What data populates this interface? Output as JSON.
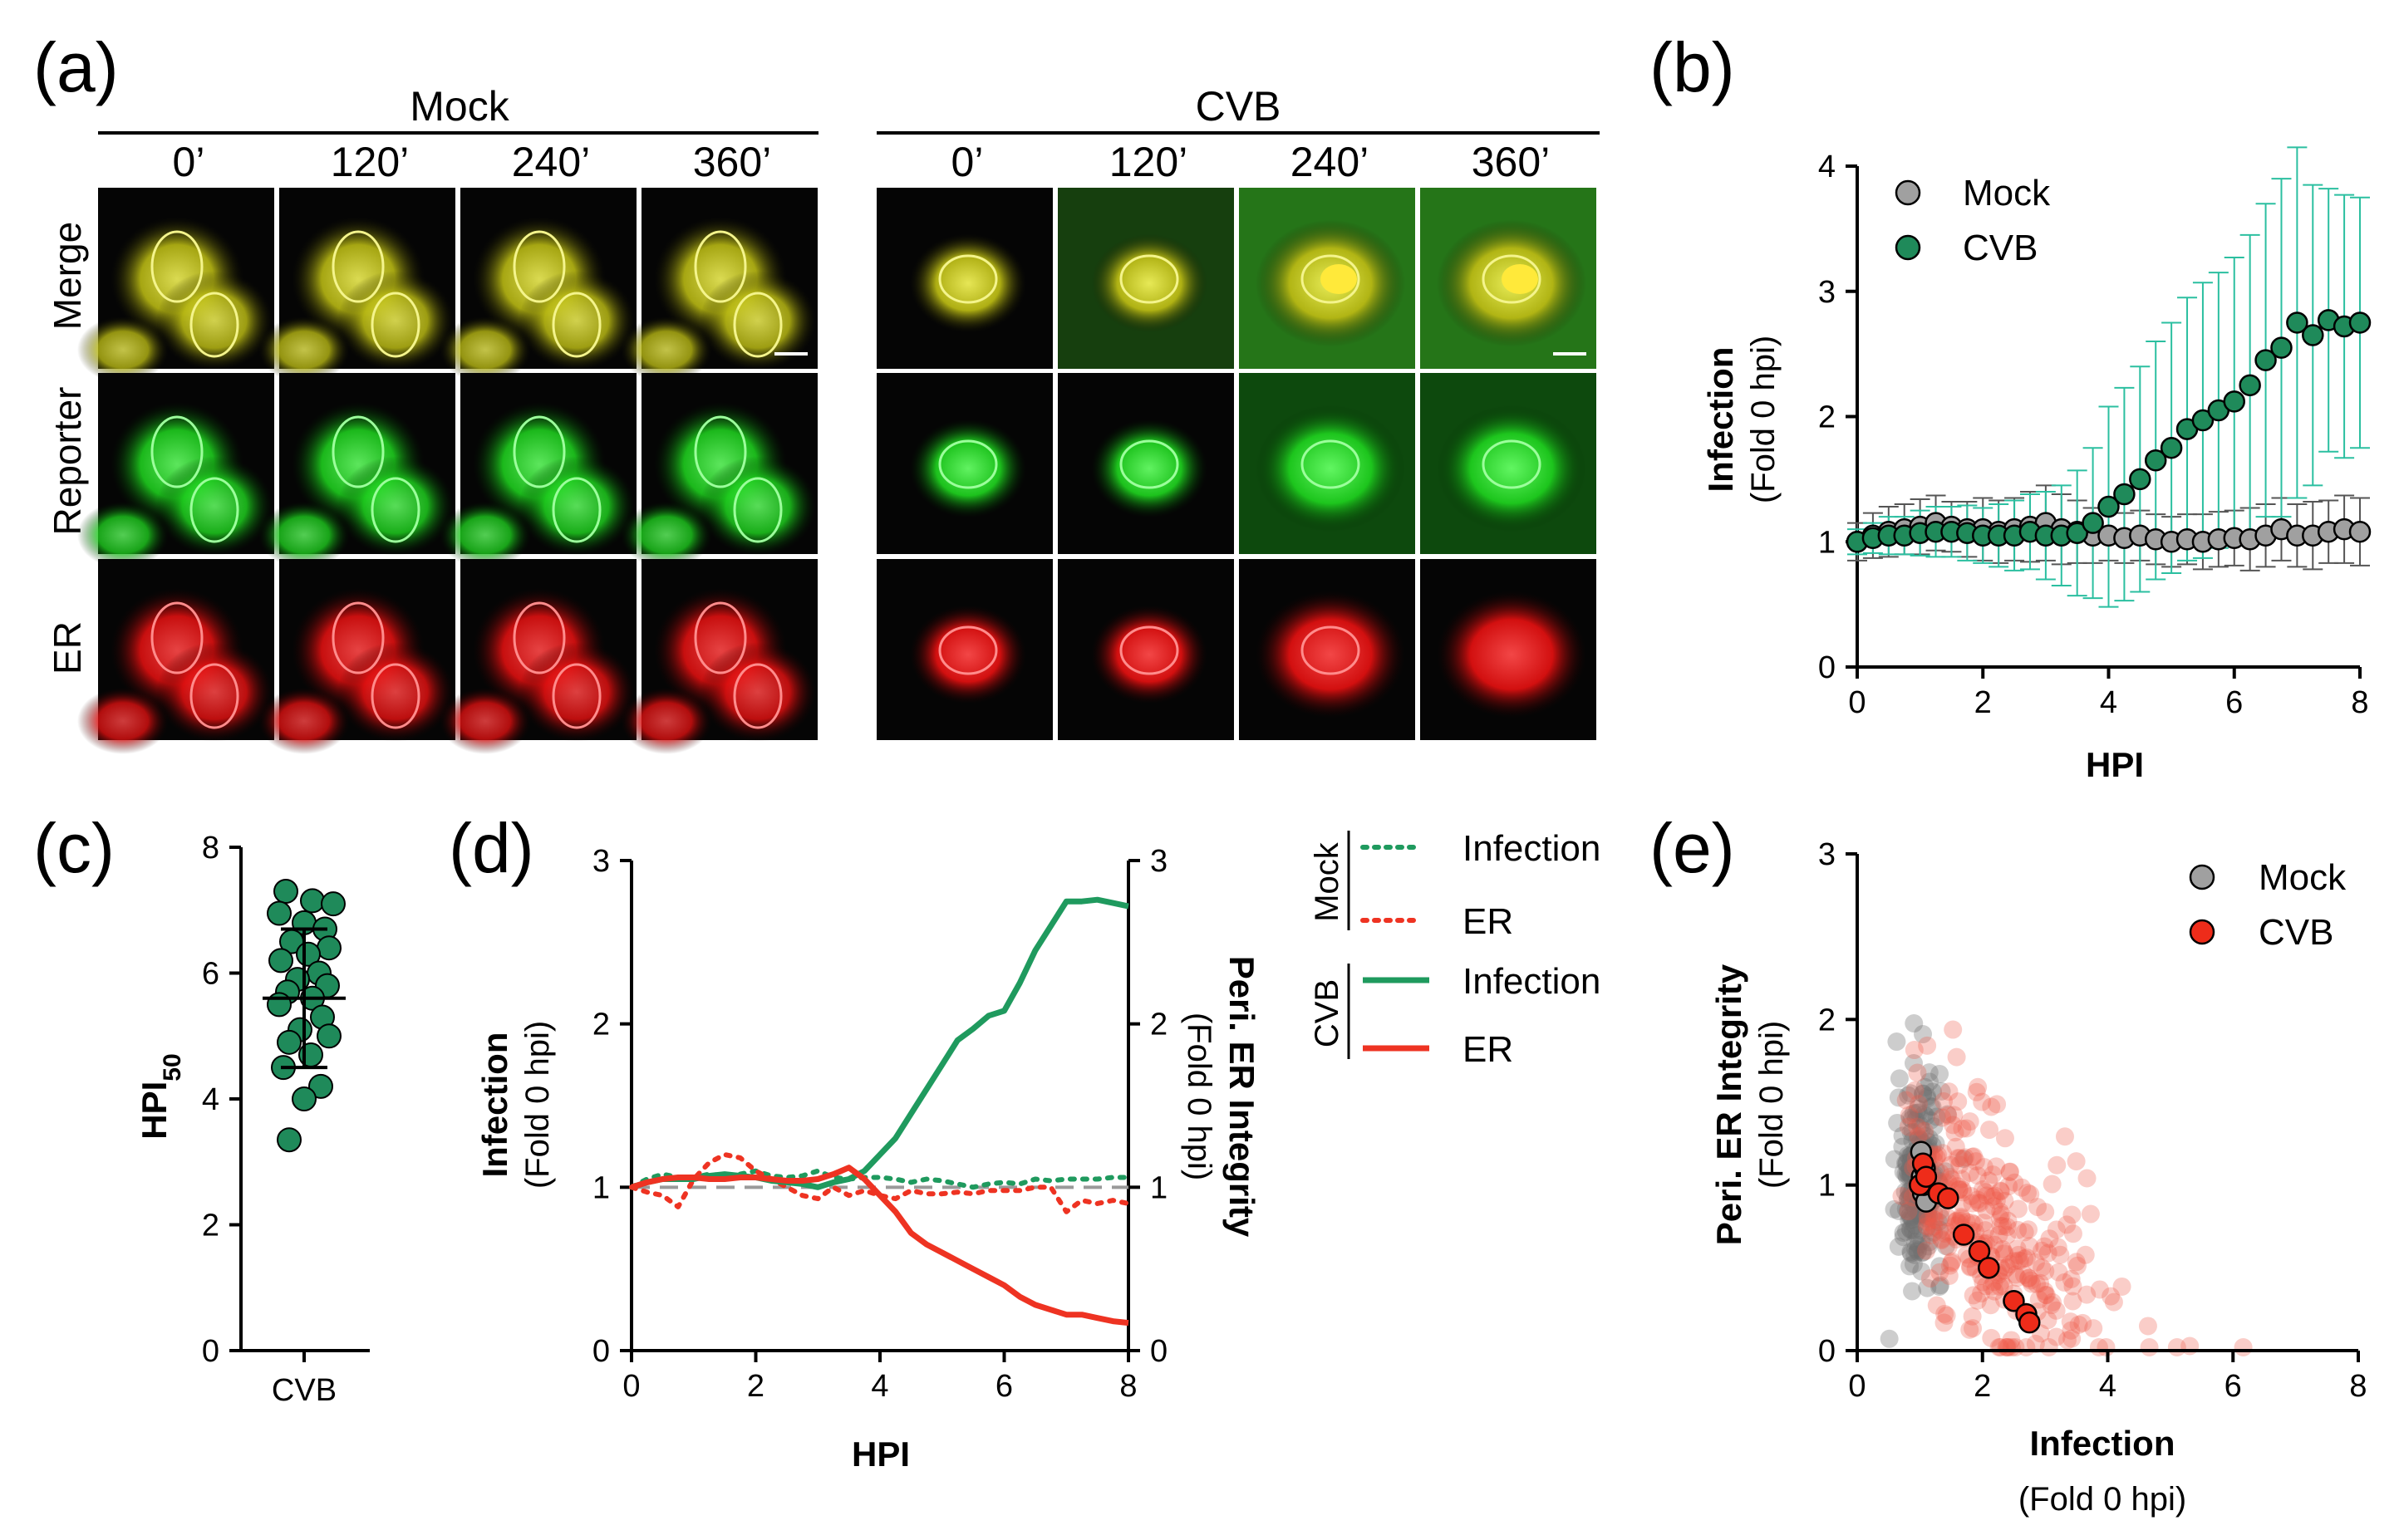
{
  "figure": {
    "panel_a": {
      "letter": "(a)",
      "groups": [
        {
          "name": "Mock",
          "times": [
            "0’",
            "120’",
            "240’",
            "360’"
          ]
        },
        {
          "name": "CVB",
          "times": [
            "0’",
            "120’",
            "240’",
            "360’"
          ]
        }
      ],
      "rows": [
        "Merge",
        "Reporter",
        "ER"
      ]
    },
    "panel_letters": {
      "b": "(b)",
      "c": "(c)",
      "d": "(d)",
      "e": "(e)"
    }
  },
  "chart_data": [
    {
      "id": "b",
      "type": "scatter",
      "xlabel": "HPI",
      "ylabel": "Infection",
      "ylabel2": "(Fold 0 hpi)",
      "xlim": [
        0,
        8
      ],
      "ylim": [
        0,
        4
      ],
      "xticks": [
        "0",
        "2",
        "4",
        "6",
        "8"
      ],
      "yticks": [
        "0",
        "1",
        "2",
        "3",
        "4"
      ],
      "legend": [
        "Mock",
        "CVB"
      ],
      "x": [
        0,
        0.25,
        0.5,
        0.75,
        1.0,
        1.25,
        1.5,
        1.75,
        2.0,
        2.25,
        2.5,
        2.75,
        3.0,
        3.25,
        3.5,
        3.75,
        4.0,
        4.25,
        4.5,
        4.75,
        5.0,
        5.25,
        5.5,
        5.75,
        6.0,
        6.25,
        6.5,
        6.75,
        7.0,
        7.25,
        7.5,
        7.75,
        8.0
      ],
      "series": [
        {
          "name": "Mock",
          "color": "#a0a0a0",
          "values": [
            1.0,
            1.05,
            1.08,
            1.1,
            1.12,
            1.15,
            1.12,
            1.1,
            1.1,
            1.08,
            1.1,
            1.12,
            1.15,
            1.1,
            1.08,
            1.05,
            1.05,
            1.03,
            1.05,
            1.02,
            1.0,
            1.02,
            1.0,
            1.02,
            1.03,
            1.02,
            1.05,
            1.1,
            1.05,
            1.05,
            1.08,
            1.1,
            1.08
          ],
          "err": [
            0.15,
            0.18,
            0.2,
            0.2,
            0.22,
            0.22,
            0.2,
            0.22,
            0.25,
            0.25,
            0.25,
            0.28,
            0.3,
            0.28,
            0.25,
            0.22,
            0.2,
            0.2,
            0.2,
            0.2,
            0.2,
            0.2,
            0.22,
            0.22,
            0.22,
            0.25,
            0.25,
            0.25,
            0.25,
            0.27,
            0.25,
            0.27,
            0.27
          ]
        },
        {
          "name": "CVB",
          "color": "#1f8a5a",
          "values": [
            1.0,
            1.03,
            1.05,
            1.05,
            1.07,
            1.08,
            1.08,
            1.07,
            1.05,
            1.05,
            1.05,
            1.08,
            1.05,
            1.05,
            1.07,
            1.15,
            1.28,
            1.38,
            1.5,
            1.65,
            1.75,
            1.9,
            1.97,
            2.05,
            2.12,
            2.25,
            2.45,
            2.55,
            2.75,
            2.65,
            2.77,
            2.72,
            2.75
          ],
          "err": [
            0.1,
            0.12,
            0.15,
            0.15,
            0.18,
            0.2,
            0.2,
            0.22,
            0.22,
            0.25,
            0.28,
            0.3,
            0.35,
            0.4,
            0.5,
            0.6,
            0.8,
            0.85,
            0.9,
            0.95,
            1.0,
            1.05,
            1.1,
            1.1,
            1.15,
            1.2,
            1.25,
            1.35,
            1.4,
            1.2,
            1.05,
            1.05,
            1.0
          ]
        }
      ]
    },
    {
      "id": "c",
      "type": "scatter",
      "ylabel": "HPI",
      "ylabel_sub": "50",
      "ylim": [
        0,
        8
      ],
      "yticks": [
        "0",
        "2",
        "4",
        "6",
        "8"
      ],
      "categories": [
        "CVB"
      ],
      "values": [
        7.3,
        7.15,
        7.1,
        6.95,
        6.8,
        6.7,
        6.5,
        6.4,
        6.3,
        6.2,
        6.0,
        5.9,
        5.8,
        5.7,
        5.6,
        5.5,
        5.3,
        5.1,
        5.0,
        4.9,
        4.7,
        4.5,
        4.2,
        4.0,
        3.35
      ],
      "mean": 5.6,
      "sd": 1.1,
      "color": "#1f8a5a"
    },
    {
      "id": "d",
      "type": "line",
      "xlabel": "HPI",
      "ylabel": "Infection",
      "ylabel2": "(Fold 0 hpi)",
      "ylabel_right": "Peri. ER Integrity",
      "ylabel_right2": "(Fold 0 hpi)",
      "xlim": [
        0,
        8
      ],
      "ylim": [
        0,
        3
      ],
      "xticks": [
        "0",
        "2",
        "4",
        "6",
        "8"
      ],
      "yticks": [
        "0",
        "1",
        "2",
        "3"
      ],
      "yticks_right": [
        "0",
        "1",
        "2",
        "3"
      ],
      "legend_groups": [
        "Mock",
        "CVB"
      ],
      "legend_items": [
        "Infection",
        "ER",
        "Infection",
        "ER"
      ],
      "x": [
        0,
        0.25,
        0.5,
        0.75,
        1.0,
        1.25,
        1.5,
        1.75,
        2.0,
        2.25,
        2.5,
        2.75,
        3.0,
        3.25,
        3.5,
        3.75,
        4.0,
        4.25,
        4.5,
        4.75,
        5.0,
        5.25,
        5.5,
        5.75,
        6.0,
        6.25,
        6.5,
        6.75,
        7.0,
        7.25,
        7.5,
        7.75,
        8.0
      ],
      "series": [
        {
          "name": "Mock Infection",
          "color": "#1f9a5e",
          "dash": "dot",
          "values": [
            1.0,
            1.05,
            1.08,
            1.06,
            1.06,
            1.08,
            1.07,
            1.08,
            1.1,
            1.07,
            1.06,
            1.07,
            1.1,
            1.06,
            1.05,
            1.06,
            1.06,
            1.05,
            1.03,
            1.05,
            1.04,
            1.02,
            1.0,
            1.02,
            1.03,
            1.02,
            1.05,
            1.04,
            1.05,
            1.05,
            1.05,
            1.06,
            1.06
          ]
        },
        {
          "name": "Mock ER",
          "color": "#ee3322",
          "dash": "dot",
          "values": [
            1.0,
            0.97,
            0.95,
            0.88,
            1.05,
            1.15,
            1.2,
            1.18,
            1.1,
            1.05,
            1.0,
            0.95,
            0.93,
            1.0,
            0.95,
            0.98,
            0.95,
            0.93,
            0.98,
            0.96,
            0.96,
            0.97,
            0.96,
            0.98,
            0.98,
            0.98,
            1.0,
            1.0,
            0.85,
            0.92,
            0.9,
            0.92,
            0.9
          ]
        },
        {
          "name": "CVB Infection",
          "color": "#1f9a5e",
          "dash": "solid",
          "values": [
            1.0,
            1.03,
            1.05,
            1.05,
            1.05,
            1.07,
            1.08,
            1.07,
            1.06,
            1.04,
            1.03,
            1.02,
            1.0,
            1.03,
            1.05,
            1.1,
            1.2,
            1.3,
            1.45,
            1.6,
            1.75,
            1.9,
            1.97,
            2.05,
            2.08,
            2.25,
            2.45,
            2.6,
            2.75,
            2.75,
            2.76,
            2.74,
            2.72
          ]
        },
        {
          "name": "CVB ER",
          "color": "#ee3322",
          "dash": "solid",
          "values": [
            1.0,
            1.03,
            1.05,
            1.06,
            1.06,
            1.05,
            1.05,
            1.06,
            1.06,
            1.05,
            1.04,
            1.04,
            1.05,
            1.08,
            1.12,
            1.05,
            0.95,
            0.85,
            0.72,
            0.65,
            0.6,
            0.55,
            0.5,
            0.45,
            0.4,
            0.33,
            0.28,
            0.25,
            0.22,
            0.22,
            0.2,
            0.18,
            0.17
          ]
        }
      ]
    },
    {
      "id": "e",
      "type": "scatter",
      "xlabel": "Infection",
      "xlabel2": "(Fold 0 hpi)",
      "ylabel": "Peri. ER Integrity",
      "ylabel2": "(Fold 0 hpi)",
      "xlim": [
        0,
        8
      ],
      "ylim": [
        0,
        3
      ],
      "xticks": [
        "0",
        "2",
        "4",
        "6",
        "8"
      ],
      "yticks": [
        "0",
        "1",
        "2",
        "3"
      ],
      "legend": [
        "Mock",
        "CVB"
      ],
      "mean_series": [
        {
          "name": "Mock",
          "color": "#a0a0a0",
          "x": [
            1.0,
            1.03,
            1.05,
            1.08,
            1.1,
            1.02,
            1.06
          ],
          "y": [
            1.0,
            1.05,
            0.95,
            1.1,
            0.9,
            1.2,
            1.0
          ]
        },
        {
          "name": "CVB",
          "color": "#ee2c1a",
          "x": [
            1.0,
            1.05,
            1.1,
            1.3,
            1.45,
            1.7,
            1.95,
            2.1,
            2.5,
            2.7,
            2.75
          ],
          "y": [
            1.0,
            1.13,
            1.05,
            0.95,
            0.92,
            0.7,
            0.6,
            0.5,
            0.3,
            0.22,
            0.17
          ]
        }
      ],
      "cloud_series": [
        {
          "name": "Mock cells",
          "color": "#707070",
          "n": 230,
          "x_center": 1.0,
          "x_sd": 0.18,
          "y_center": 1.05,
          "y_sd": 0.28
        },
        {
          "name": "CVB cells",
          "color": "#f05a4a",
          "n": 300,
          "x_center": 2.0,
          "x_sd": 1.1,
          "y_center": 0.55,
          "y_sd": 0.45
        }
      ]
    }
  ]
}
